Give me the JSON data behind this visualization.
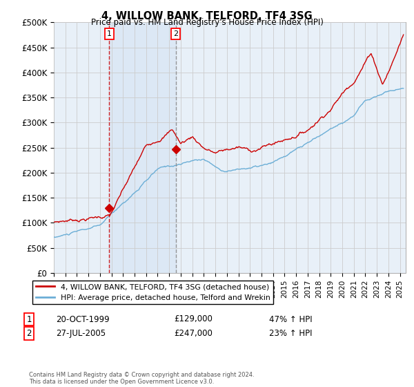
{
  "title": "4, WILLOW BANK, TELFORD, TF4 3SG",
  "subtitle": "Price paid vs. HM Land Registry's House Price Index (HPI)",
  "ylim": [
    0,
    500000
  ],
  "yticks": [
    0,
    50000,
    100000,
    150000,
    200000,
    250000,
    300000,
    350000,
    400000,
    450000,
    500000
  ],
  "ytick_labels": [
    "£0",
    "£50K",
    "£100K",
    "£150K",
    "£200K",
    "£250K",
    "£300K",
    "£350K",
    "£400K",
    "£450K",
    "£500K"
  ],
  "x_start_year": 1995,
  "x_end_year": 2025,
  "sale1_date": 1999.8,
  "sale1_price": 129000,
  "sale1_label": "1",
  "sale1_display": "20-OCT-1999",
  "sale1_amount": "£129,000",
  "sale1_hpi": "47% ↑ HPI",
  "sale2_date": 2005.57,
  "sale2_price": 247000,
  "sale2_label": "2",
  "sale2_display": "27-JUL-2005",
  "sale2_amount": "£247,000",
  "sale2_hpi": "23% ↑ HPI",
  "hpi_color": "#6baed6",
  "sale_color": "#cc0000",
  "vline1_color": "#cc0000",
  "vline2_color": "#888888",
  "shade_color": "#dce8f5",
  "grid_color": "#cccccc",
  "bg_color": "#e8f0f8",
  "legend_label_sale": "4, WILLOW BANK, TELFORD, TF4 3SG (detached house)",
  "legend_label_hpi": "HPI: Average price, detached house, Telford and Wrekin",
  "footnote": "Contains HM Land Registry data © Crown copyright and database right 2024.\nThis data is licensed under the Open Government Licence v3.0."
}
